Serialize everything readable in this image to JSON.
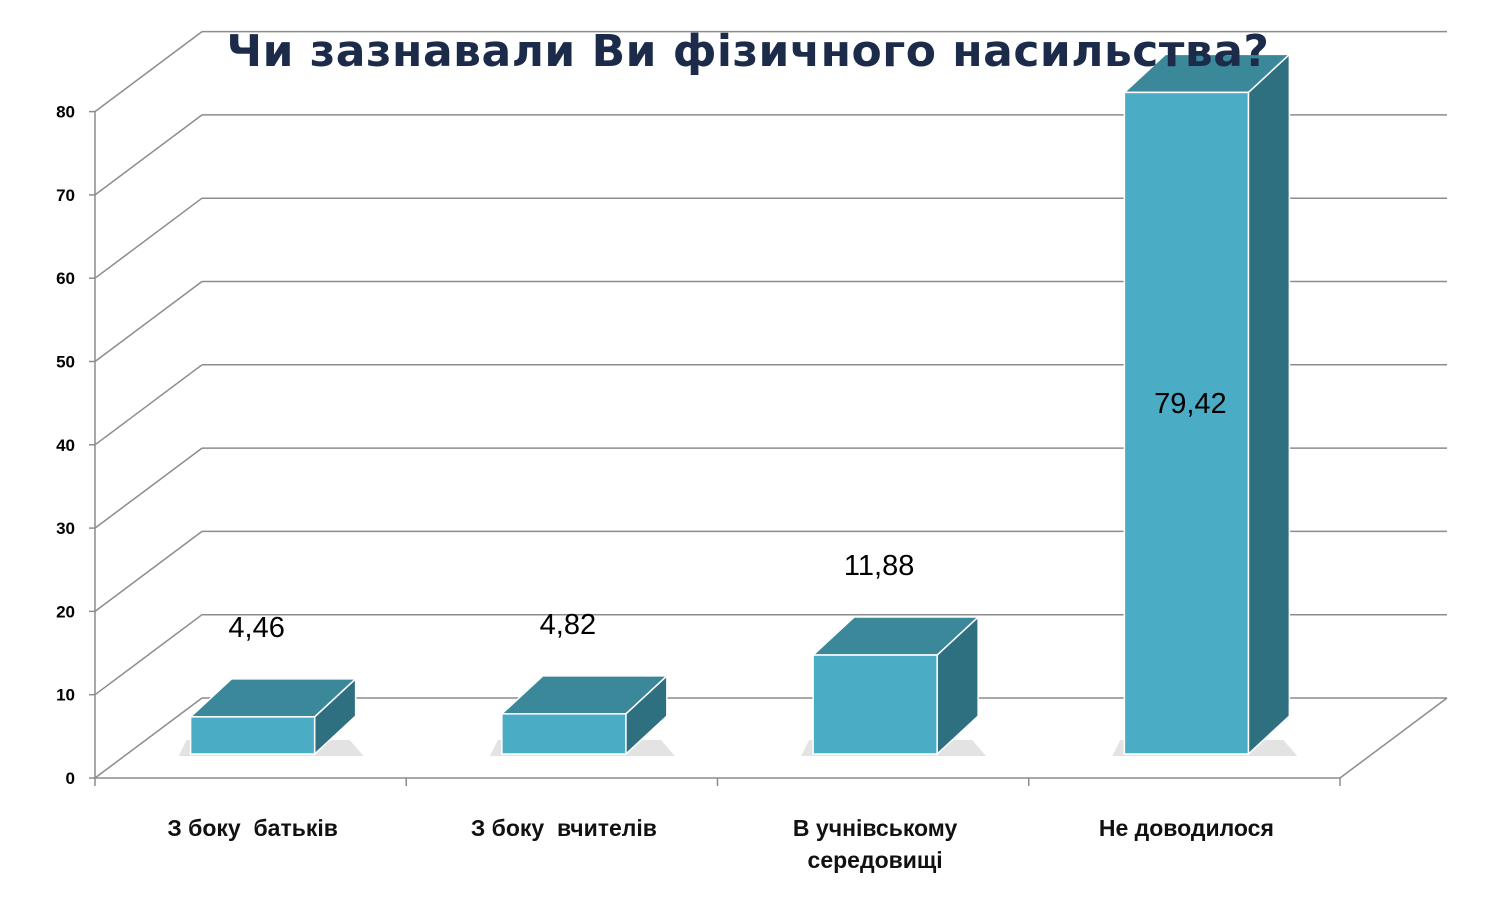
{
  "chart_data": {
    "type": "bar",
    "title": "Чи зазнавали Ви фізичного насильства?",
    "categories": [
      [
        "З боку  батьків"
      ],
      [
        "З боку  вчителів"
      ],
      [
        "В учнівському",
        "середовищі"
      ],
      [
        "Не доводилося"
      ]
    ],
    "values": [
      4.46,
      4.82,
      11.88,
      79.42
    ],
    "data_labels": [
      "4,46",
      "4,82",
      "11,88",
      "79,42"
    ],
    "y_ticks": [
      "0",
      "10",
      "20",
      "30",
      "40",
      "50",
      "60",
      "70",
      "80"
    ],
    "ylim": [
      0,
      80
    ],
    "grid": true,
    "style": "3d-column",
    "colors": {
      "front": "#4bacc6",
      "top": "#3a8899",
      "side": "#2e6f80",
      "grid": "#8c8c8c"
    }
  }
}
